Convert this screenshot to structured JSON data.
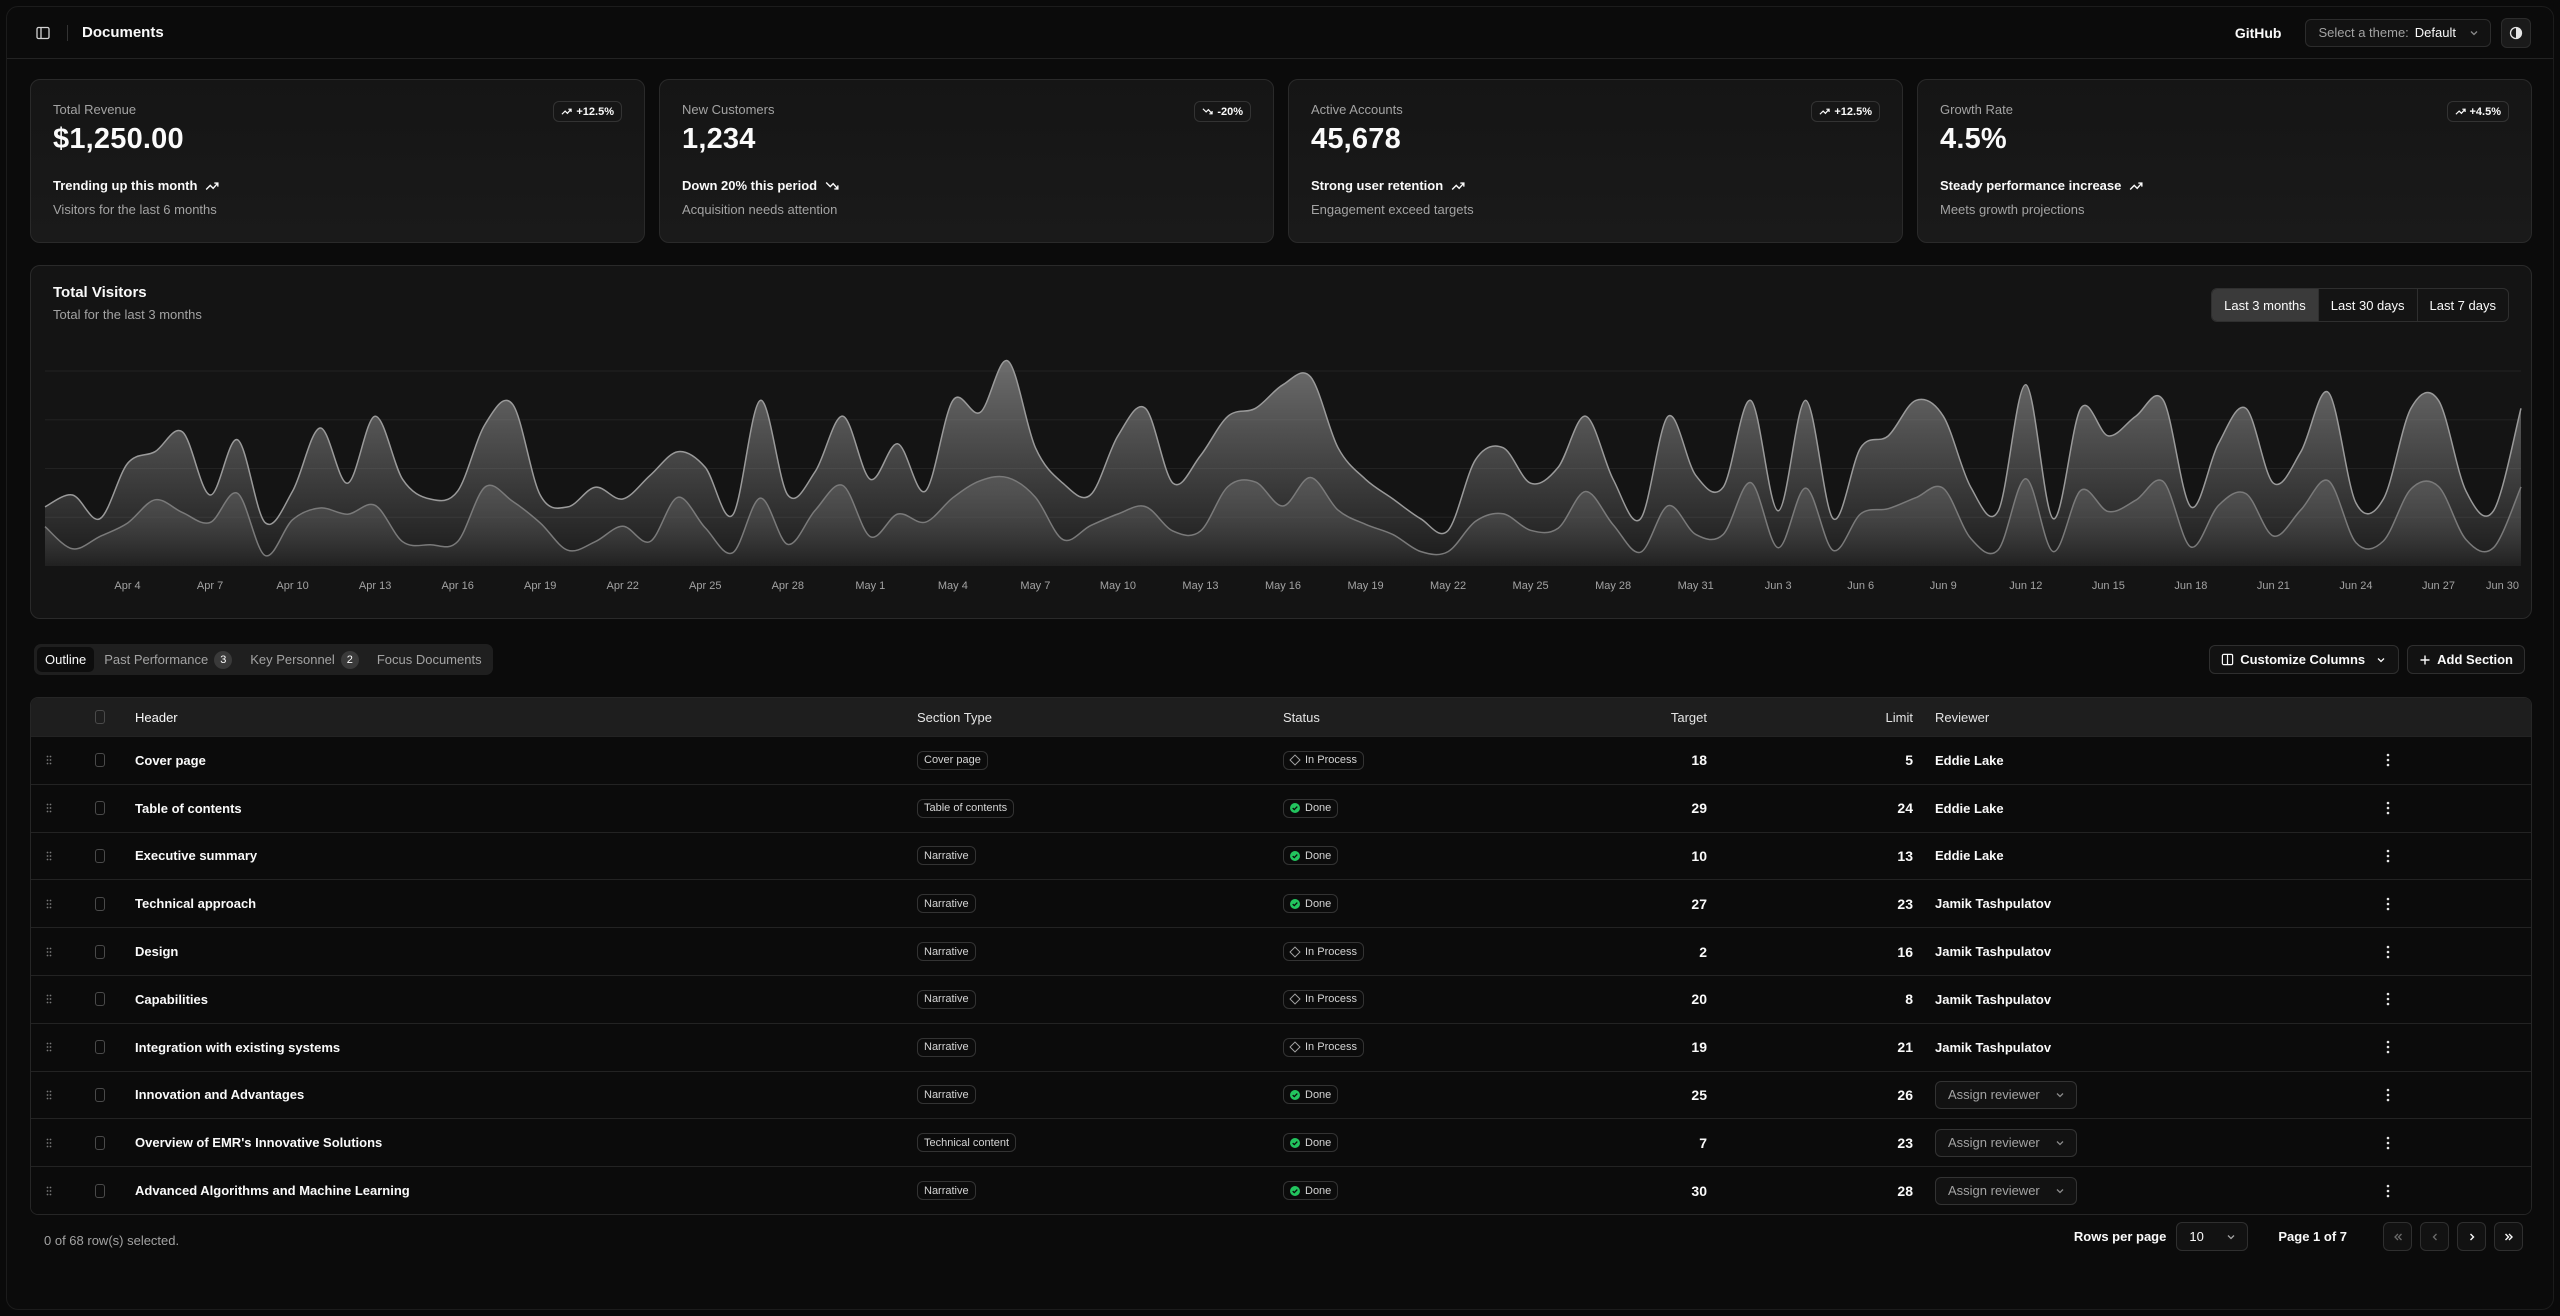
{
  "header": {
    "title": "Documents",
    "github_label": "GitHub",
    "theme_label": "Select a theme:",
    "theme_value": "Default"
  },
  "cards": [
    {
      "label": "Total Revenue",
      "value": "$1,250.00",
      "badge": "+12.5%",
      "badge_dir": "up",
      "trend": "Trending up this month",
      "trend_dir": "up",
      "sub": "Visitors for the last 6 months"
    },
    {
      "label": "New Customers",
      "value": "1,234",
      "badge": "-20%",
      "badge_dir": "down",
      "trend": "Down 20% this period",
      "trend_dir": "down",
      "sub": "Acquisition needs attention"
    },
    {
      "label": "Active Accounts",
      "value": "45,678",
      "badge": "+12.5%",
      "badge_dir": "up",
      "trend": "Strong user retention",
      "trend_dir": "up",
      "sub": "Engagement exceed targets"
    },
    {
      "label": "Growth Rate",
      "value": "4.5%",
      "badge": "+4.5%",
      "badge_dir": "up",
      "trend": "Steady performance increase",
      "trend_dir": "up",
      "sub": "Meets growth projections"
    }
  ],
  "chart": {
    "title": "Total Visitors",
    "subtitle": "Total for the last 3 months",
    "ranges": [
      "Last 3 months",
      "Last 30 days",
      "Last 7 days"
    ],
    "selected_range": "Last 3 months",
    "x_ticks": [
      "Apr 4",
      "Apr 7",
      "Apr 10",
      "Apr 13",
      "Apr 16",
      "Apr 19",
      "Apr 22",
      "Apr 25",
      "Apr 28",
      "May 1",
      "May 4",
      "May 7",
      "May 10",
      "May 13",
      "May 16",
      "May 19",
      "May 22",
      "May 25",
      "May 28",
      "May 31",
      "Jun 3",
      "Jun 6",
      "Jun 9",
      "Jun 12",
      "Jun 15",
      "Jun 18",
      "Jun 21",
      "Jun 24",
      "Jun 27",
      "Jun 30"
    ]
  },
  "chart_data": {
    "type": "area",
    "title": "Total Visitors",
    "subtitle": "Total for the last 3 months",
    "x": [
      "Apr 1",
      "Apr 2",
      "Apr 3",
      "Apr 4",
      "Apr 5",
      "Apr 6",
      "Apr 7",
      "Apr 8",
      "Apr 9",
      "Apr 10",
      "Apr 11",
      "Apr 12",
      "Apr 13",
      "Apr 14",
      "Apr 15",
      "Apr 16",
      "Apr 17",
      "Apr 18",
      "Apr 19",
      "Apr 20",
      "Apr 21",
      "Apr 22",
      "Apr 23",
      "Apr 24",
      "Apr 25",
      "Apr 26",
      "Apr 27",
      "Apr 28",
      "Apr 29",
      "Apr 30",
      "May 1",
      "May 2",
      "May 3",
      "May 4",
      "May 5",
      "May 6",
      "May 7",
      "May 8",
      "May 9",
      "May 10",
      "May 11",
      "May 12",
      "May 13",
      "May 14",
      "May 15",
      "May 16",
      "May 17",
      "May 18",
      "May 19",
      "May 20",
      "May 21",
      "May 22",
      "May 23",
      "May 24",
      "May 25",
      "May 26",
      "May 27",
      "May 28",
      "May 29",
      "May 30",
      "May 31",
      "Jun 1",
      "Jun 2",
      "Jun 3",
      "Jun 4",
      "Jun 5",
      "Jun 6",
      "Jun 7",
      "Jun 8",
      "Jun 9",
      "Jun 10",
      "Jun 11",
      "Jun 12",
      "Jun 13",
      "Jun 14",
      "Jun 15",
      "Jun 16",
      "Jun 17",
      "Jun 18",
      "Jun 19",
      "Jun 20",
      "Jun 21",
      "Jun 22",
      "Jun 23",
      "Jun 24",
      "Jun 25",
      "Jun 26",
      "Jun 27",
      "Jun 28",
      "Jun 29",
      "Jun 30"
    ],
    "series": [
      {
        "values": [
          222,
          97,
          167,
          242,
          373,
          301,
          245,
          409,
          59,
          261,
          327,
          292,
          342,
          137,
          120,
          138,
          446,
          364,
          243,
          89,
          137,
          224,
          138,
          387,
          215,
          75,
          383,
          122,
          315,
          454,
          165,
          293,
          247,
          385,
          481,
          498,
          388,
          149,
          227,
          293,
          335,
          197,
          197,
          448,
          473,
          338,
          499,
          315,
          235,
          177,
          82,
          81,
          252,
          294,
          201,
          213,
          420,
          233,
          78,
          340,
          178,
          178,
          470,
          103,
          439,
          88,
          294,
          323,
          385,
          438,
          155,
          92,
          492,
          81,
          426,
          307,
          371,
          475,
          107,
          341,
          408,
          169,
          317,
          480,
          132,
          141,
          434,
          448,
          149,
          103,
          446
        ]
      },
      {
        "values": [
          150,
          180,
          120,
          260,
          290,
          340,
          180,
          320,
          110,
          190,
          350,
          210,
          380,
          220,
          170,
          190,
          360,
          410,
          180,
          150,
          200,
          170,
          230,
          290,
          250,
          130,
          420,
          180,
          240,
          380,
          220,
          310,
          190,
          420,
          390,
          520,
          300,
          210,
          180,
          330,
          400,
          210,
          280,
          380,
          400,
          460,
          480,
          300,
          220,
          170,
          120,
          90,
          270,
          300,
          210,
          250,
          380,
          220,
          120,
          380,
          230,
          200,
          420,
          140,
          420,
          120,
          300,
          330,
          420,
          380,
          200,
          140,
          460,
          120,
          400,
          330,
          380,
          420,
          150,
          310,
          400,
          210,
          290,
          440,
          160,
          170,
          400,
          420,
          190,
          140,
          400
        ]
      }
    ]
  },
  "tabs": [
    {
      "label": "Outline",
      "count": ""
    },
    {
      "label": "Past Performance",
      "count": "3"
    },
    {
      "label": "Key Personnel",
      "count": "2"
    },
    {
      "label": "Focus Documents",
      "count": ""
    }
  ],
  "actions": {
    "customize": "Customize Columns",
    "add": "Add Section"
  },
  "table": {
    "columns": {
      "header": "Header",
      "type": "Section Type",
      "status": "Status",
      "target": "Target",
      "limit": "Limit",
      "reviewer": "Reviewer"
    },
    "rows": [
      {
        "header": "Cover page",
        "type": "Cover page",
        "status": "In Process",
        "target": "18",
        "limit": "5",
        "reviewer": "Eddie Lake"
      },
      {
        "header": "Table of contents",
        "type": "Table of contents",
        "status": "Done",
        "target": "29",
        "limit": "24",
        "reviewer": "Eddie Lake"
      },
      {
        "header": "Executive summary",
        "type": "Narrative",
        "status": "Done",
        "target": "10",
        "limit": "13",
        "reviewer": "Eddie Lake"
      },
      {
        "header": "Technical approach",
        "type": "Narrative",
        "status": "Done",
        "target": "27",
        "limit": "23",
        "reviewer": "Jamik Tashpulatov"
      },
      {
        "header": "Design",
        "type": "Narrative",
        "status": "In Process",
        "target": "2",
        "limit": "16",
        "reviewer": "Jamik Tashpulatov"
      },
      {
        "header": "Capabilities",
        "type": "Narrative",
        "status": "In Process",
        "target": "20",
        "limit": "8",
        "reviewer": "Jamik Tashpulatov"
      },
      {
        "header": "Integration with existing systems",
        "type": "Narrative",
        "status": "In Process",
        "target": "19",
        "limit": "21",
        "reviewer": "Jamik Tashpulatov"
      },
      {
        "header": "Innovation and Advantages",
        "type": "Narrative",
        "status": "Done",
        "target": "25",
        "limit": "26",
        "reviewer": "Assign reviewer"
      },
      {
        "header": "Overview of EMR's Innovative Solutions",
        "type": "Technical content",
        "status": "Done",
        "target": "7",
        "limit": "23",
        "reviewer": "Assign reviewer"
      },
      {
        "header": "Advanced Algorithms and Machine Learning",
        "type": "Narrative",
        "status": "Done",
        "target": "30",
        "limit": "28",
        "reviewer": "Assign reviewer"
      }
    ]
  },
  "footer": {
    "selection": "0 of 68 row(s) selected.",
    "rows_per_page_label": "Rows per page",
    "rows_per_page": "10",
    "page_info": "Page 1 of 7"
  }
}
